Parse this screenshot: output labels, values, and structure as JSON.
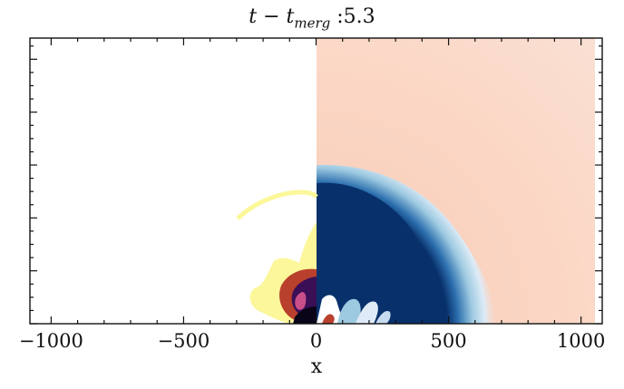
{
  "chart_data": {
    "type": "heatmap",
    "title": {
      "prefix": "t − t",
      "subscript": "merg",
      "value_text": " :5.3"
    },
    "xlabel": "x",
    "ylabel": "",
    "xlim": [
      -1080,
      1080
    ],
    "ylim": [
      0,
      1080
    ],
    "x_ticks": [
      -1000,
      -500,
      0,
      500,
      1000
    ],
    "x_tick_labels": [
      "−1000",
      "−500",
      "0",
      "500",
      "1000"
    ],
    "y_tick_labels_visible": false,
    "grid": false,
    "panels": [
      {
        "side": "left",
        "x_range": [
          -1080,
          0
        ],
        "colormap": "inferno",
        "features": [
          {
            "kind": "dark core",
            "x": [
              -90,
              0
            ],
            "y": [
              0,
              40
            ]
          },
          {
            "kind": "purple/orange blob",
            "x": [
              -140,
              0
            ],
            "y": [
              0,
              160
            ]
          },
          {
            "kind": "yellow arc",
            "radius": 290
          }
        ]
      },
      {
        "side": "right",
        "x_range": [
          0,
          1050
        ],
        "colormap": "RdBu",
        "features": [
          {
            "kind": "dark blue cap",
            "radius": 530
          },
          {
            "kind": "light blue halo",
            "radius": 620
          },
          {
            "kind": "pale orange background"
          }
        ]
      }
    ],
    "colors": {
      "dark_blue": "#08306b",
      "light_blue": "#c6dbef",
      "pale_orange": "#fbd5c5",
      "yellow": "#fcf79a",
      "purple": "#3a0f56",
      "orange": "#b8402c"
    }
  }
}
